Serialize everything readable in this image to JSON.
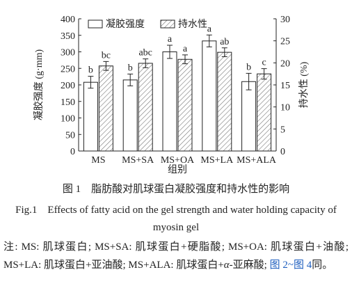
{
  "chart_data": {
    "type": "bar",
    "xlabel": "组别",
    "ylabel": "凝胶强度 (g·mm)",
    "y2label": "持水性 (%)",
    "categories": [
      "MS",
      "MS+SA",
      "MS+OA",
      "MS+LA",
      "MS+ALA"
    ],
    "series": [
      {
        "name": "凝胶强度",
        "color": "#ffffff",
        "hatch": false,
        "values": [
          208,
          215,
          300,
          333,
          210
        ],
        "errors": [
          18,
          18,
          20,
          18,
          25
        ],
        "letters": [
          "b",
          "b",
          "a",
          "a",
          "b"
        ]
      },
      {
        "name": "持水性",
        "color": "#ffffff",
        "hatch": true,
        "axis": "y2",
        "values": [
          19.3,
          19.9,
          20.8,
          22.4,
          17.5
        ],
        "errors": [
          1.0,
          1.0,
          1.0,
          1.0,
          1.2
        ],
        "letters": [
          "bc",
          "abc",
          "a",
          "ab",
          "c"
        ]
      }
    ],
    "ylim": [
      0,
      400
    ],
    "yticks": [
      0,
      50,
      100,
      150,
      200,
      250,
      300,
      350,
      400
    ],
    "y2lim": [
      0,
      30
    ],
    "y2ticks": [
      0,
      5,
      10,
      15,
      20,
      25,
      30
    ],
    "legend": "top-left"
  },
  "figure": {
    "caption_cn": "图 1　脂肪酸对肌球蛋白凝胶强度和持水性的影响",
    "caption_en": "Fig.1　Effects of fatty acid on the gel strength and water holding capacity of myosin gel",
    "note": [
      "注: MS: 肌球蛋白; MS+SA: 肌球蛋白+硬脂酸; MS+OA: 肌球蛋白+油酸; MS+LA: 肌球蛋白+亚油酸; MS+ALA: 肌球蛋白+",
      "α",
      "-亚麻酸; ",
      "图 2~图 4",
      "同。"
    ]
  }
}
